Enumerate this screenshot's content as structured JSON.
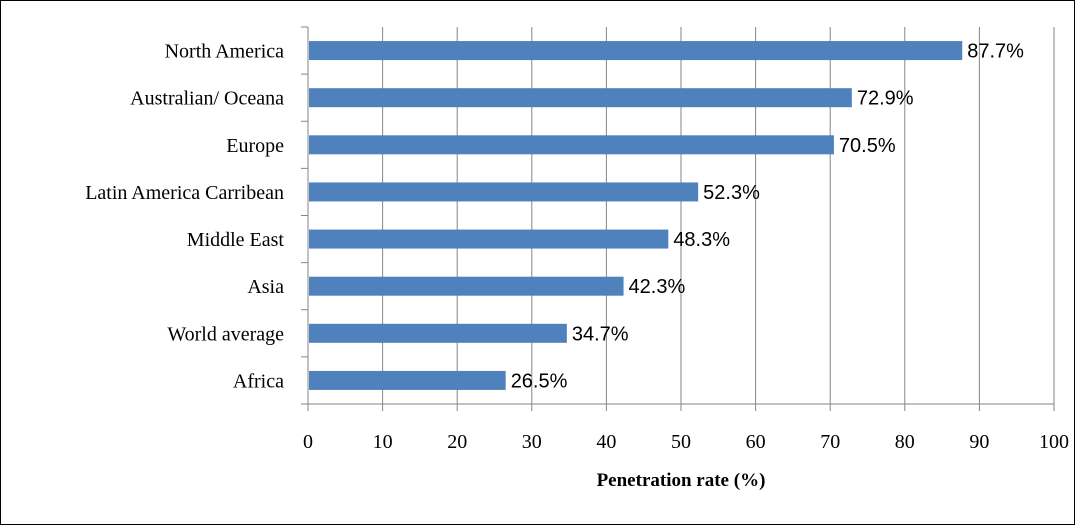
{
  "chart_data": {
    "type": "bar",
    "orientation": "horizontal",
    "categories": [
      "North America",
      "Australian/ Oceana",
      "Europe",
      "Latin America Carribean",
      "Middle East",
      "Asia",
      "World average",
      "Africa"
    ],
    "values": [
      87.7,
      72.9,
      70.5,
      52.3,
      48.3,
      42.3,
      34.7,
      26.5
    ],
    "data_labels": [
      "87.7%",
      "72.9%",
      "70.5%",
      "52.3%",
      "48.3%",
      "42.3%",
      "34.7%",
      "26.5%"
    ],
    "xlabel": "Penetration rate (%)",
    "ylabel": "",
    "xlim": [
      0,
      100
    ],
    "xticks": [
      "0",
      "10",
      "20",
      "30",
      "40",
      "50",
      "60",
      "70",
      "80",
      "90",
      "100"
    ],
    "grid": "vertical",
    "legend": "none",
    "bar_color": "#4f81bd",
    "grid_color": "#868686"
  }
}
